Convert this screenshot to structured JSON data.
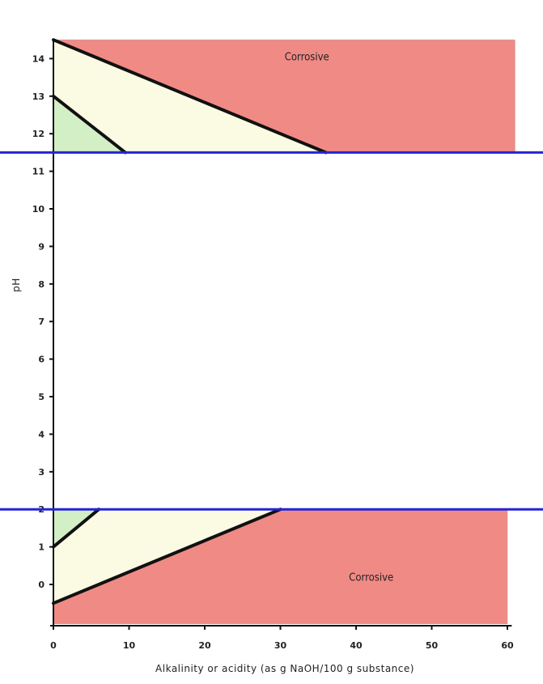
{
  "chart_data": {
    "type": "area",
    "title": "",
    "xlabel": "Alkalinity or acidity (as g NaOH/100 g substance)",
    "ylabel": "pH",
    "xlim": [
      0,
      61
    ],
    "ylim": [
      -1.1,
      14.5
    ],
    "x_ticks": [
      0,
      10,
      20,
      30,
      40,
      50,
      60
    ],
    "y_ticks": [
      0,
      1,
      2,
      3,
      4,
      5,
      6,
      7,
      8,
      9,
      10,
      11,
      12,
      13,
      14
    ],
    "threshold_lines": [
      11.5,
      2
    ],
    "regions": [
      {
        "label": "Corrosive",
        "color": "#f08a85",
        "polygon": [
          [
            0,
            14.5
          ],
          [
            61,
            14.5
          ],
          [
            61,
            11.5
          ],
          [
            36,
            11.5
          ]
        ]
      },
      {
        "label": "",
        "color": "#fbfbe3",
        "polygon": [
          [
            0,
            14.5
          ],
          [
            36,
            11.5
          ],
          [
            9.5,
            11.5
          ],
          [
            0,
            13
          ]
        ]
      },
      {
        "label": "",
        "color": "#d3efc6",
        "polygon": [
          [
            0,
            13
          ],
          [
            9.5,
            11.5
          ],
          [
            0,
            11.5
          ]
        ]
      },
      {
        "label": "Corrosive",
        "color": "#f08a85",
        "polygon": [
          [
            0,
            -0.5
          ],
          [
            30,
            2
          ],
          [
            60,
            2
          ],
          [
            60,
            -1.05
          ],
          [
            0,
            -1.05
          ]
        ]
      },
      {
        "label": "",
        "color": "#fbfbe3",
        "polygon": [
          [
            0,
            1
          ],
          [
            6,
            2
          ],
          [
            30,
            2
          ],
          [
            0,
            -0.5
          ]
        ]
      },
      {
        "label": "",
        "color": "#d3efc6",
        "polygon": [
          [
            0,
            1
          ],
          [
            0,
            2
          ],
          [
            6,
            2
          ]
        ]
      }
    ],
    "boundary_lines": [
      [
        [
          0,
          14.5
        ],
        [
          36,
          11.5
        ]
      ],
      [
        [
          0,
          13
        ],
        [
          9.5,
          11.5
        ]
      ],
      [
        [
          0,
          1
        ],
        [
          6,
          2
        ]
      ],
      [
        [
          0,
          -0.5
        ],
        [
          30,
          2
        ]
      ]
    ],
    "annotations": [
      {
        "text": "Corrosive",
        "x": 33.5,
        "y": 13.95
      },
      {
        "text": "Corrosive",
        "x": 42,
        "y": 0.1
      }
    ],
    "grid": false,
    "legend": "none",
    "colors": {
      "corrosive": "#f08a85",
      "intermediate": "#fbfbe3",
      "safe": "#d3efc6",
      "threshold": "#2424d6",
      "boundary": "#111111"
    }
  }
}
